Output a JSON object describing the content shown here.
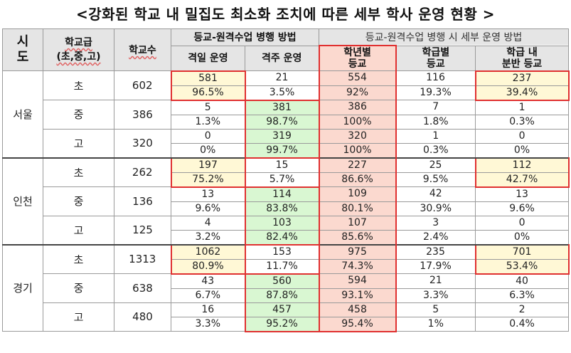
{
  "title": "<강화된 학교 내 밀집도 최소화 조치에 따른 세부 학사 운영 현황 >",
  "header": {
    "sido": "시\n도",
    "level": "학교급\n(초,중,고)",
    "count": "학교수",
    "group1": "등교-원격수업 병행 방법",
    "group2": "등교-원격수업 병행 시 세부 운영 방법",
    "cols": [
      "격일 운영",
      "격주 운영",
      "학년별\n등교",
      "학급별\n등교",
      "학급 내\n분반 등교"
    ]
  },
  "regions": [
    {
      "name": "서울",
      "rows": [
        {
          "level": "초",
          "count": "602",
          "counts": [
            "581",
            "21",
            "554",
            "116",
            "237"
          ],
          "pcts": [
            "96.5%",
            "3.5%",
            "92%",
            "19.3%",
            "39.4%"
          ]
        },
        {
          "level": "중",
          "count": "386",
          "counts": [
            "5",
            "381",
            "386",
            "7",
            "1"
          ],
          "pcts": [
            "1.3%",
            "98.7%",
            "100%",
            "1.8%",
            "0.3%"
          ]
        },
        {
          "level": "고",
          "count": "320",
          "counts": [
            "0",
            "319",
            "320",
            "1",
            "0"
          ],
          "pcts": [
            "0%",
            "99.7%",
            "100%",
            "0.3%",
            "0%"
          ]
        }
      ]
    },
    {
      "name": "인천",
      "rows": [
        {
          "level": "초",
          "count": "262",
          "counts": [
            "197",
            "15",
            "227",
            "25",
            "112"
          ],
          "pcts": [
            "75.2%",
            "5.7%",
            "86.6%",
            "9.5%",
            "42.7%"
          ]
        },
        {
          "level": "중",
          "count": "136",
          "counts": [
            "13",
            "114",
            "109",
            "42",
            "13"
          ],
          "pcts": [
            "9.6%",
            "83.8%",
            "80.1%",
            "30.9%",
            "9.6%"
          ]
        },
        {
          "level": "고",
          "count": "125",
          "counts": [
            "4",
            "103",
            "107",
            "3",
            "0"
          ],
          "pcts": [
            "3.2%",
            "82.4%",
            "85.6%",
            "2.4%",
            "0%"
          ]
        }
      ]
    },
    {
      "name": "경기",
      "rows": [
        {
          "level": "초",
          "count": "1313",
          "counts": [
            "1062",
            "153",
            "975",
            "235",
            "701"
          ],
          "pcts": [
            "80.9%",
            "11.7%",
            "74.3%",
            "17.9%",
            "53.4%"
          ]
        },
        {
          "level": "중",
          "count": "638",
          "counts": [
            "43",
            "560",
            "594",
            "21",
            "40"
          ],
          "pcts": [
            "6.7%",
            "87.8%",
            "93.1%",
            "3.3%",
            "6.3%"
          ]
        },
        {
          "level": "고",
          "count": "480",
          "counts": [
            "16",
            "457",
            "458",
            "5",
            "2"
          ],
          "pcts": [
            "3.3%",
            "95.2%",
            "95.4%",
            "1%",
            "0.4%"
          ]
        }
      ]
    }
  ],
  "colors": {
    "yellow_highlight": "#fff8d6",
    "green_highlight": "#d9f7d2",
    "pink_highlight": "#fbd9cf",
    "red_border": "#e03030",
    "header_bg": "#e5e5e5"
  }
}
